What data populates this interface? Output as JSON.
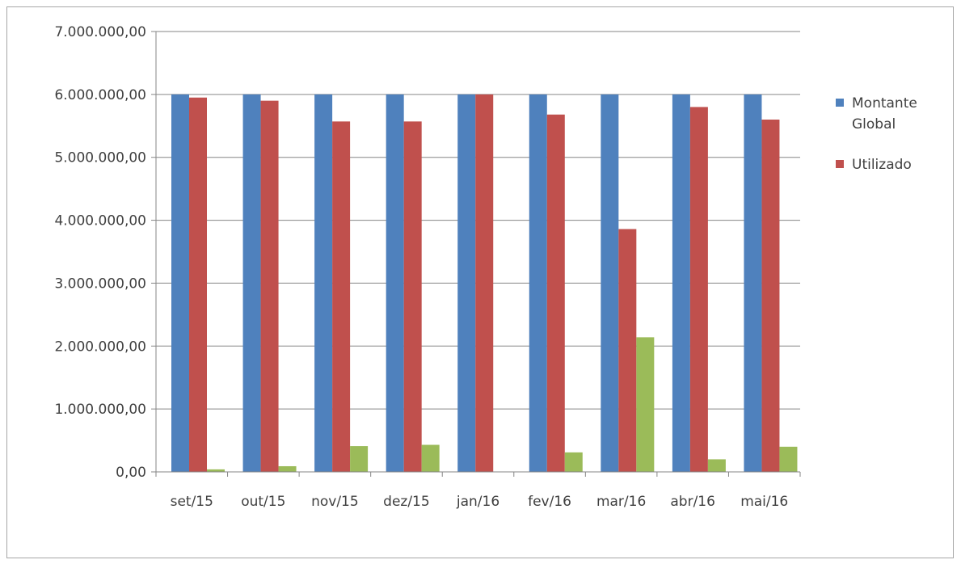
{
  "chart_data": {
    "type": "bar",
    "title": "",
    "xlabel": "",
    "ylabel": "",
    "categories": [
      "set/15",
      "out/15",
      "nov/15",
      "dez/15",
      "jan/16",
      "fev/16",
      "mar/16",
      "abr/16",
      "mai/16"
    ],
    "y_ticks": [
      "0,00",
      "1.000.000,00",
      "2.000.000,00",
      "3.000.000,00",
      "4.000.000,00",
      "5.000.000,00",
      "6.000.000,00",
      "7.000.000,00"
    ],
    "ylim": [
      0,
      7000000
    ],
    "grid": true,
    "legend_position": "right",
    "series": [
      {
        "legend_lines": [
          "Montante",
          "Global"
        ],
        "color": "#4f81bd",
        "values": [
          6000000,
          6000000,
          6000000,
          6000000,
          6000000,
          6000000,
          6000000,
          6000000,
          6000000
        ]
      },
      {
        "legend_lines": [
          "Utilizado"
        ],
        "color": "#c0504d",
        "values": [
          5950000,
          5900000,
          5570000,
          5570000,
          6000000,
          5680000,
          3860000,
          5800000,
          5600000
        ]
      },
      {
        "legend_lines": [],
        "color": "#9bbb59",
        "values": [
          40000,
          90000,
          410000,
          430000,
          0,
          310000,
          2140000,
          200000,
          400000
        ]
      }
    ]
  }
}
